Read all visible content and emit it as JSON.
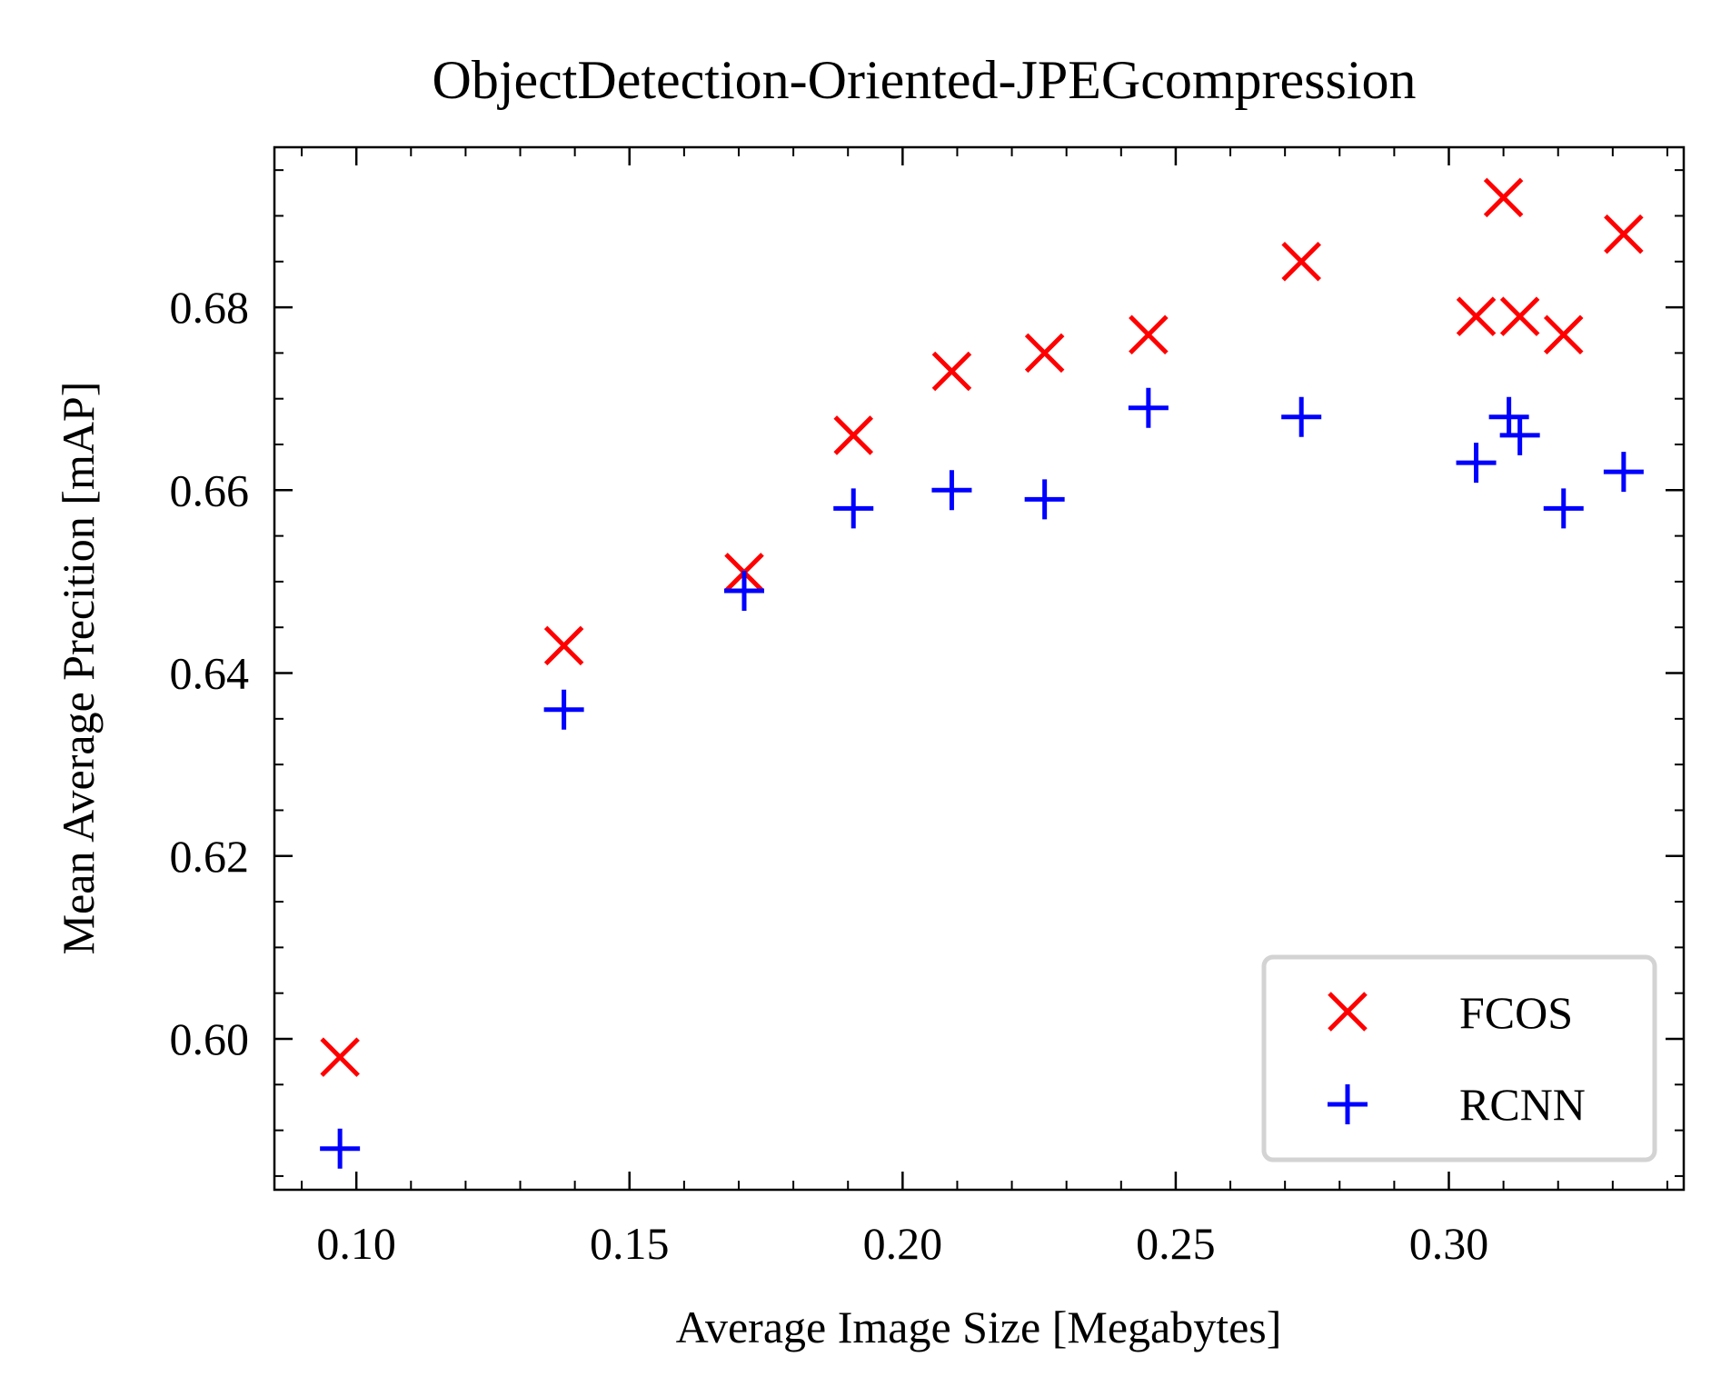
{
  "chart_data": {
    "type": "scatter",
    "title": "ObjectDetection-Oriented-JPEGcompression",
    "xlabel": "Average Image Size [Megabytes]",
    "ylabel": "Mean Average Precition [mAP]",
    "xlim": [
      0.085,
      0.343
    ],
    "ylim": [
      0.5835,
      0.6975
    ],
    "xticks": [
      0.1,
      0.15,
      0.2,
      0.25,
      0.3
    ],
    "xtick_labels": [
      "0.10",
      "0.15",
      "0.20",
      "0.25",
      "0.30"
    ],
    "yticks": [
      0.6,
      0.62,
      0.64,
      0.66,
      0.68
    ],
    "ytick_labels": [
      "0.60",
      "0.62",
      "0.64",
      "0.66",
      "0.68"
    ],
    "grid": false,
    "legend_position": "bottom-right",
    "series": [
      {
        "name": "FCOS",
        "marker": "x",
        "color": "#ff0000",
        "points": [
          [
            0.097,
            0.598
          ],
          [
            0.138,
            0.643
          ],
          [
            0.171,
            0.651
          ],
          [
            0.191,
            0.666
          ],
          [
            0.209,
            0.673
          ],
          [
            0.226,
            0.675
          ],
          [
            0.245,
            0.677
          ],
          [
            0.273,
            0.685
          ],
          [
            0.305,
            0.679
          ],
          [
            0.31,
            0.692
          ],
          [
            0.313,
            0.679
          ],
          [
            0.321,
            0.677
          ],
          [
            0.332,
            0.688
          ]
        ]
      },
      {
        "name": "RCNN",
        "marker": "+",
        "color": "#0000ff",
        "points": [
          [
            0.097,
            0.588
          ],
          [
            0.138,
            0.636
          ],
          [
            0.171,
            0.649
          ],
          [
            0.191,
            0.658
          ],
          [
            0.209,
            0.66
          ],
          [
            0.226,
            0.659
          ],
          [
            0.245,
            0.669
          ],
          [
            0.273,
            0.668
          ],
          [
            0.305,
            0.663
          ],
          [
            0.311,
            0.668
          ],
          [
            0.313,
            0.666
          ],
          [
            0.321,
            0.658
          ],
          [
            0.332,
            0.662
          ]
        ]
      }
    ]
  }
}
